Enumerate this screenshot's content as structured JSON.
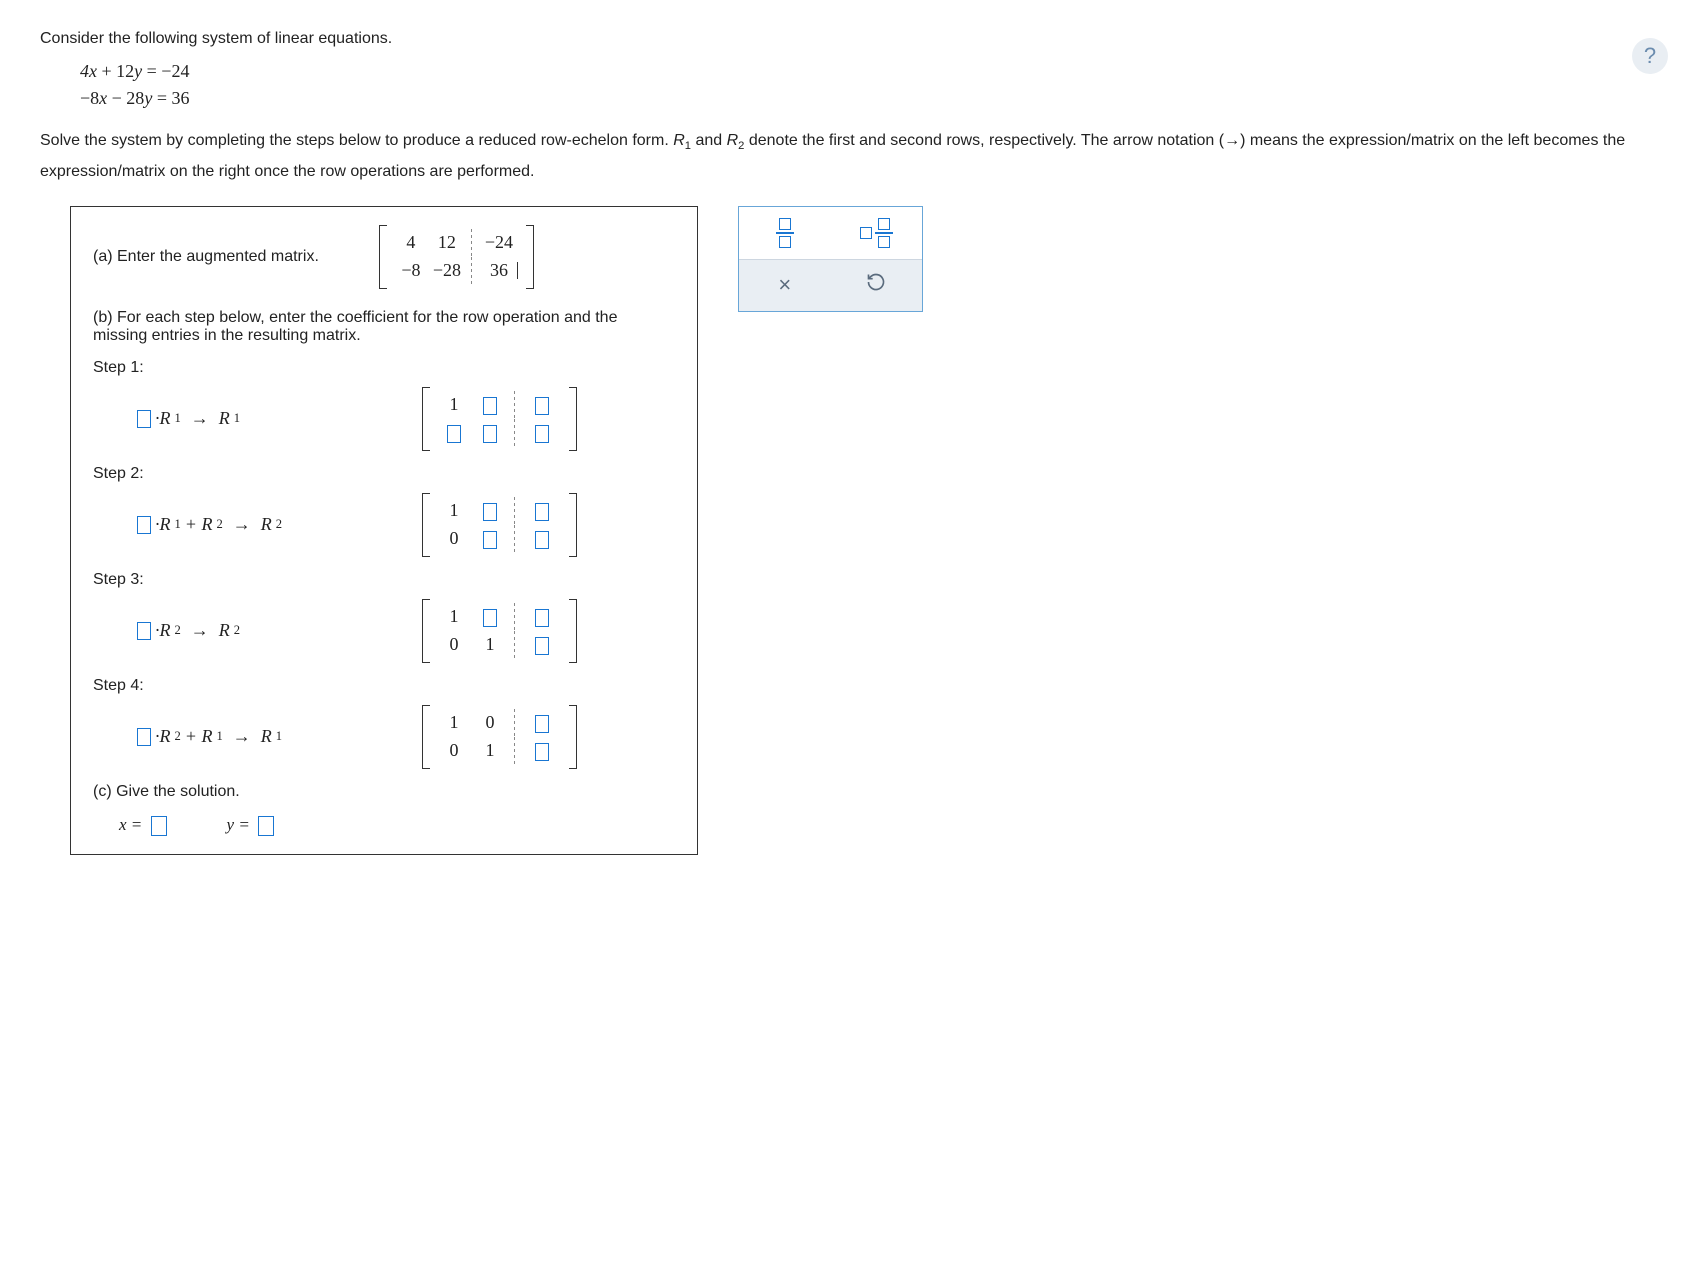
{
  "help_icon": "?",
  "intro": "Consider the following system of linear equations.",
  "equations": [
    "4x + 12y = −24",
    "−8x − 28y = 36"
  ],
  "instructions_pre": "Solve the system by completing the steps below to produce a reduced row-echelon form. ",
  "instructions_r1": "R",
  "instructions_r1_sub": "1",
  "instructions_mid1": " and ",
  "instructions_r2": "R",
  "instructions_r2_sub": "2",
  "instructions_mid2": " denote the first and second rows, respectively. The arrow notation (→) means the expression/matrix on the left becomes the expression/matrix on the right once the row operations are performed.",
  "part_a": "(a) Enter the augmented matrix.",
  "part_b": "(b) For each step below, enter the coefficient for the row operation and the missing entries in the resulting matrix.",
  "part_c": "(c) Give the solution.",
  "augmented_matrix": {
    "rows": [
      {
        "c1": "4",
        "c2": "12",
        "aug": "−24"
      },
      {
        "c1": "−8",
        "c2": "−28",
        "aug": "36"
      }
    ]
  },
  "steps": [
    {
      "label": "Step 1:",
      "op_lhs": "·R",
      "op_lhs_sub": "1",
      "op_plus": null,
      "op_rhs": "R",
      "op_rhs_sub": "1",
      "matrix": [
        {
          "c1": "1",
          "c2": "□",
          "aug": "□"
        },
        {
          "c1": "□",
          "c2": "□",
          "aug": "□"
        }
      ]
    },
    {
      "label": "Step 2:",
      "op_lhs": "·R",
      "op_lhs_sub": "1",
      "op_plus": " + R",
      "op_plus_sub": "2",
      "op_rhs": "R",
      "op_rhs_sub": "2",
      "matrix": [
        {
          "c1": "1",
          "c2": "□",
          "aug": "□"
        },
        {
          "c1": "0",
          "c2": "□",
          "aug": "□"
        }
      ]
    },
    {
      "label": "Step 3:",
      "op_lhs": "·R",
      "op_lhs_sub": "2",
      "op_plus": null,
      "op_rhs": "R",
      "op_rhs_sub": "2",
      "matrix": [
        {
          "c1": "1",
          "c2": "□",
          "aug": "□"
        },
        {
          "c1": "0",
          "c2": "1",
          "aug": "□"
        }
      ]
    },
    {
      "label": "Step 4:",
      "op_lhs": "·R",
      "op_lhs_sub": "2",
      "op_plus": " + R",
      "op_plus_sub": "1",
      "op_rhs": "R",
      "op_rhs_sub": "1",
      "matrix": [
        {
          "c1": "1",
          "c2": "0",
          "aug": "□"
        },
        {
          "c1": "0",
          "c2": "1",
          "aug": "□"
        }
      ]
    }
  ],
  "solution": {
    "x_label": "x =",
    "y_label": "y ="
  },
  "toolbar": {
    "frac_title": "fraction",
    "mixed_title": "mixed number",
    "clear": "×",
    "undo": "↺"
  },
  "colors": {
    "input_border": "#1976d2",
    "toolbar_border": "#68a6d8",
    "toolbar_bg_bottom": "#e9eef3"
  }
}
